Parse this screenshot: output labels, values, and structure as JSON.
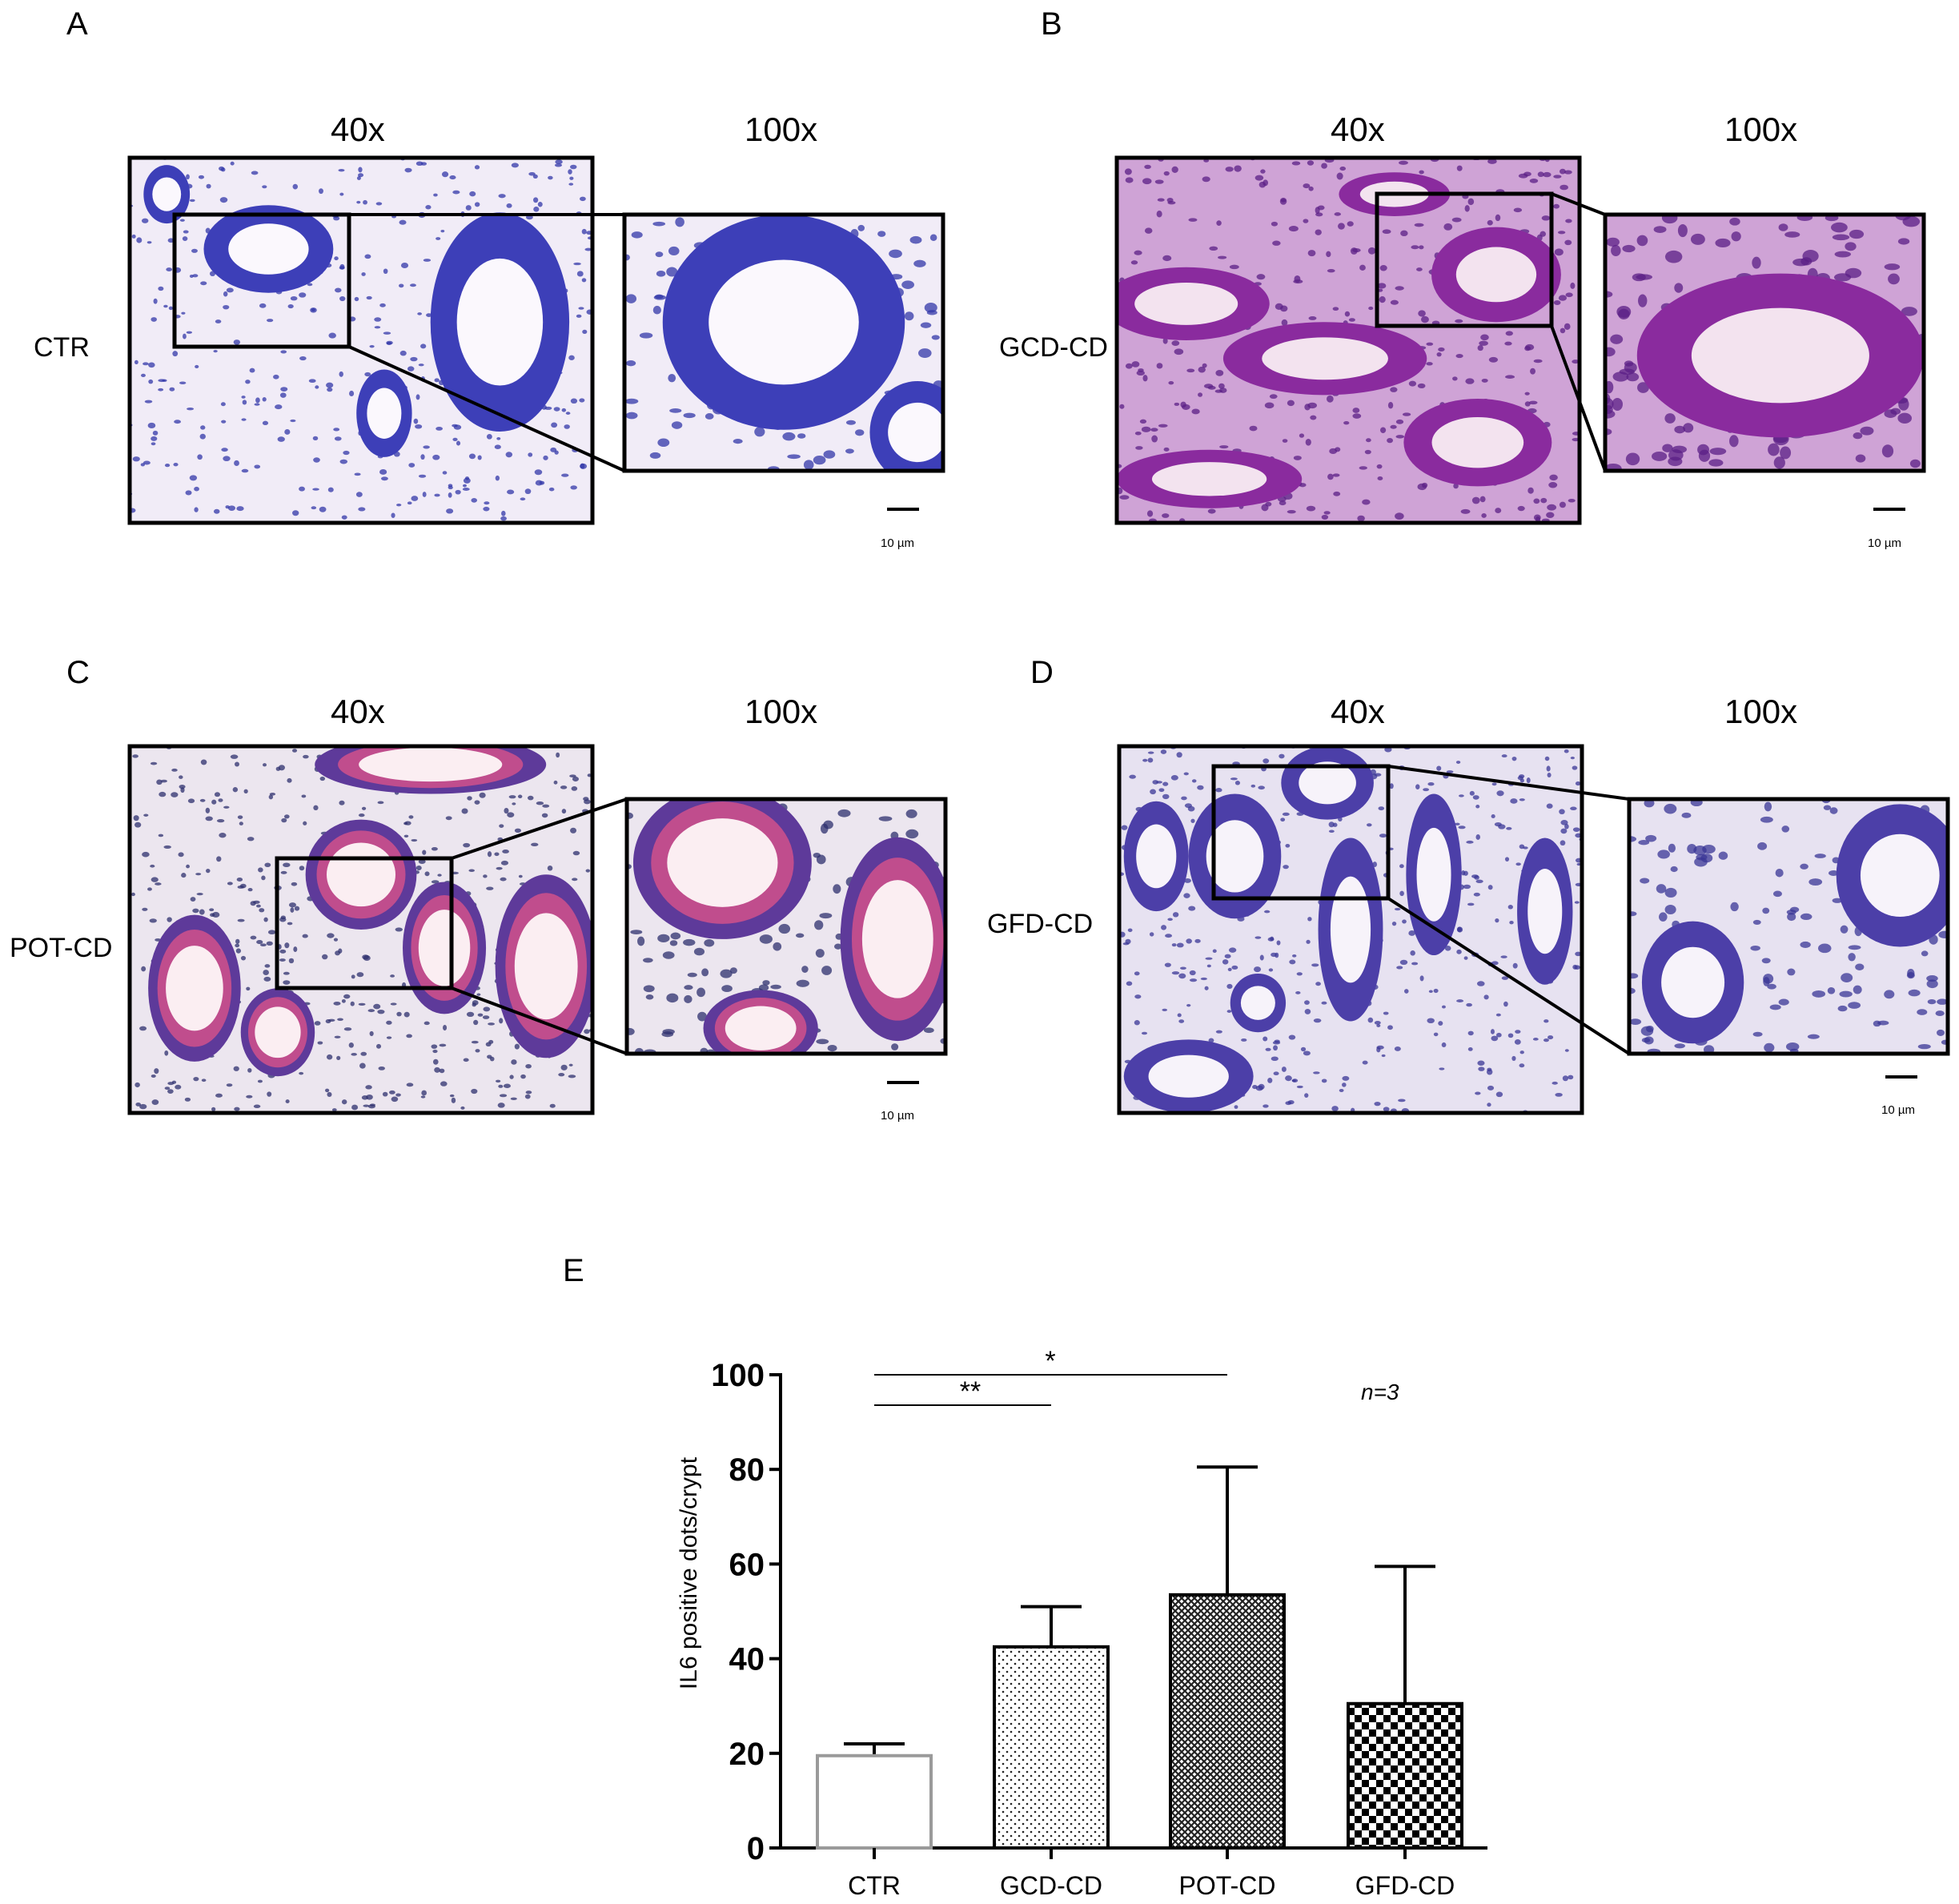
{
  "panels": [
    {
      "letter": "A",
      "group": "CTR",
      "mag_low": "40x",
      "mag_high": "100x",
      "scale": "10 µm",
      "theme": "blue"
    },
    {
      "letter": "B",
      "group": "GCD-CD",
      "mag_low": "40x",
      "mag_high": "100x",
      "scale": "10 µm",
      "theme": "purple"
    },
    {
      "letter": "C",
      "group": "POT-CD",
      "mag_low": "40x",
      "mag_high": "100x",
      "scale": "10 µm",
      "theme": "pink"
    },
    {
      "letter": "D",
      "group": "GFD-CD",
      "mag_low": "40x",
      "mag_high": "100x",
      "scale": "10 µm",
      "theme": "violet"
    }
  ],
  "panel_e": {
    "letter": "E"
  },
  "chart_data": {
    "type": "bar",
    "categories": [
      "CTR",
      "GCD-CD",
      "POT-CD",
      "GFD-CD"
    ],
    "values": [
      19.5,
      42.5,
      53.5,
      30.5
    ],
    "error_upper": [
      22,
      51,
      80.5,
      59.5
    ],
    "patterns": [
      "open",
      "dots",
      "crosshatch",
      "checker"
    ],
    "ylabel": "IL6 positive dots/crypt",
    "ylim": [
      0,
      100
    ],
    "yticks": [
      0,
      20,
      40,
      60,
      80,
      100
    ],
    "annotation": "n=3",
    "significance": [
      {
        "from": "CTR",
        "to": "POT-CD",
        "label": "*"
      },
      {
        "from": "CTR",
        "to": "GCD-CD",
        "label": "**"
      }
    ]
  }
}
